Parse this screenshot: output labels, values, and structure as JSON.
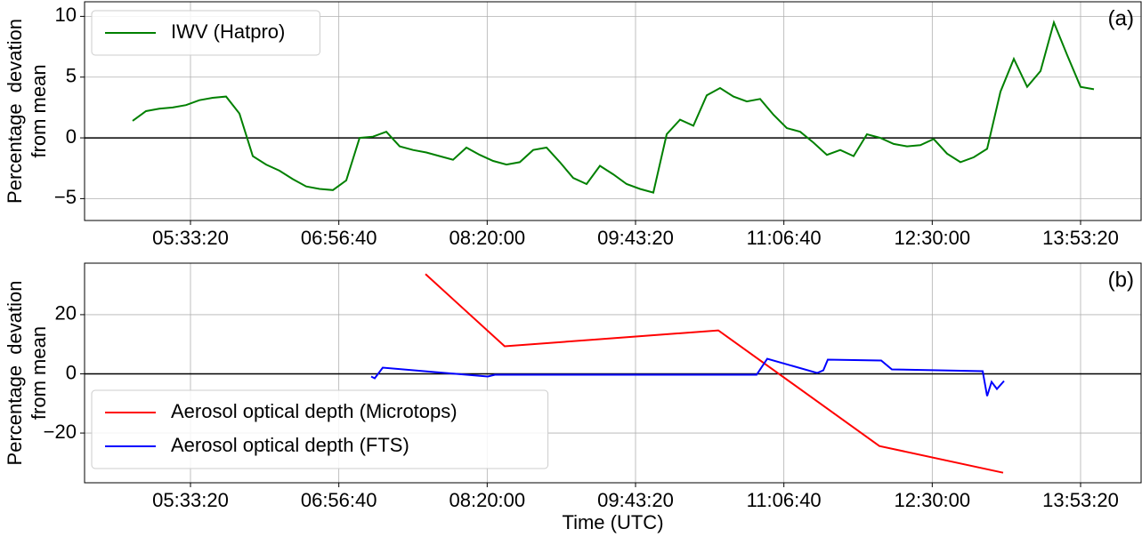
{
  "chart_data": [
    {
      "type": "line",
      "annotation": "(a)",
      "ylabel": [
        "Percentage  devation",
        "from mean"
      ],
      "xlim": [
        "04:33:50",
        "14:27:20"
      ],
      "xticks": [
        "05:33:20",
        "06:56:40",
        "08:20:00",
        "09:43:20",
        "11:06:40",
        "12:30:00",
        "13:53:20"
      ],
      "ylim": [
        -6.8,
        11.2
      ],
      "yticks": [
        {
          "value": -5,
          "label": "−5"
        },
        0,
        5,
        10
      ],
      "grid": true,
      "hline": 0,
      "legend": "upper left",
      "series": [
        {
          "name": "IWV (Hatpro)",
          "color": "#008000",
          "x": [
            "05:00:50",
            "05:08:20",
            "05:15:50",
            "05:23:20",
            "05:30:50",
            "05:38:20",
            "05:45:50",
            "05:53:20",
            "06:00:50",
            "06:08:20",
            "06:15:50",
            "06:23:20",
            "06:30:50",
            "06:38:20",
            "06:45:50",
            "06:53:20",
            "07:00:50",
            "07:08:20",
            "07:15:50",
            "07:23:20",
            "07:30:50",
            "07:38:20",
            "07:45:50",
            "07:53:20",
            "08:00:50",
            "08:08:20",
            "08:15:50",
            "08:23:20",
            "08:30:50",
            "08:38:20",
            "08:45:50",
            "08:53:20",
            "09:00:50",
            "09:08:20",
            "09:15:50",
            "09:23:20",
            "09:30:50",
            "09:38:20",
            "09:45:50",
            "09:53:20",
            "10:00:50",
            "10:08:20",
            "10:15:50",
            "10:23:20",
            "10:30:50",
            "10:38:20",
            "10:45:50",
            "10:53:20",
            "11:00:50",
            "11:08:20",
            "11:15:50",
            "11:23:20",
            "11:30:50",
            "11:38:20",
            "11:45:50",
            "11:53:20",
            "12:00:50",
            "12:08:20",
            "12:15:50",
            "12:23:20",
            "12:30:50",
            "12:38:20",
            "12:45:50",
            "12:53:20",
            "13:00:50",
            "13:08:20",
            "13:15:50",
            "13:23:20",
            "13:30:50",
            "13:38:20",
            "13:45:50",
            "13:53:20",
            "14:00:50"
          ],
          "values": [
            1.4,
            2.2,
            2.4,
            2.5,
            2.7,
            3.1,
            3.3,
            3.4,
            2.0,
            -1.5,
            -2.2,
            -2.7,
            -3.4,
            -4.0,
            -4.2,
            -4.3,
            -3.5,
            0.0,
            0.1,
            0.5,
            -0.7,
            -1.0,
            -1.2,
            -1.5,
            -1.8,
            -0.8,
            -1.4,
            -1.9,
            -2.2,
            -2.0,
            -1.0,
            -0.8,
            -2.0,
            -3.3,
            -3.8,
            -2.3,
            -3.0,
            -3.8,
            -4.2,
            -4.5,
            0.3,
            1.5,
            1.0,
            3.5,
            4.1,
            3.4,
            3.0,
            3.2,
            1.9,
            0.8,
            0.5,
            -0.4,
            -1.4,
            -1.0,
            -1.5,
            0.3,
            0.0,
            -0.5,
            -0.7,
            -0.6,
            -0.1,
            -1.3,
            -2.0,
            -1.6,
            -0.9,
            3.8,
            6.5,
            4.2,
            5.5,
            9.5,
            6.8,
            4.2,
            4.0
          ]
        }
      ]
    },
    {
      "type": "line",
      "annotation": "(b)",
      "ylabel": [
        "Percentage  devation",
        "from mean"
      ],
      "xlabel": "Time (UTC)",
      "xlim": [
        "04:33:50",
        "14:27:20"
      ],
      "xticks": [
        "05:33:20",
        "06:56:40",
        "08:20:00",
        "09:43:20",
        "11:06:40",
        "12:30:00",
        "13:53:20"
      ],
      "ylim": [
        -36.8,
        37.4
      ],
      "yticks": [
        {
          "value": -20,
          "label": "−20"
        },
        0,
        20
      ],
      "grid": true,
      "hline": 0,
      "legend": "lower left",
      "series": [
        {
          "name": "Aerosol optical depth (Microtops)",
          "color": "#ff0000",
          "x": [
            "07:45:20",
            "08:29:50",
            "10:29:50",
            "12:00:20",
            "13:09:50"
          ],
          "values": [
            33.7,
            9.3,
            14.7,
            -24.4,
            -33.4
          ]
        },
        {
          "name": "Aerosol optical depth (FTS)",
          "color": "#0000ff",
          "x": [
            "07:14:50",
            "07:16:50",
            "07:21:20",
            "08:20:20",
            "08:24:20",
            "10:51:20",
            "10:57:20",
            "11:25:20",
            "11:28:50",
            "11:31:20",
            "12:01:20",
            "12:07:20",
            "12:58:20",
            "13:00:50",
            "13:03:20",
            "13:06:20",
            "13:10:20"
          ],
          "values": [
            -0.9,
            -1.5,
            2.1,
            -0.9,
            -0.3,
            -0.3,
            5.1,
            0.3,
            1.2,
            4.8,
            4.5,
            1.5,
            0.9,
            -7.5,
            -2.7,
            -5.1,
            -2.4
          ]
        }
      ]
    }
  ]
}
